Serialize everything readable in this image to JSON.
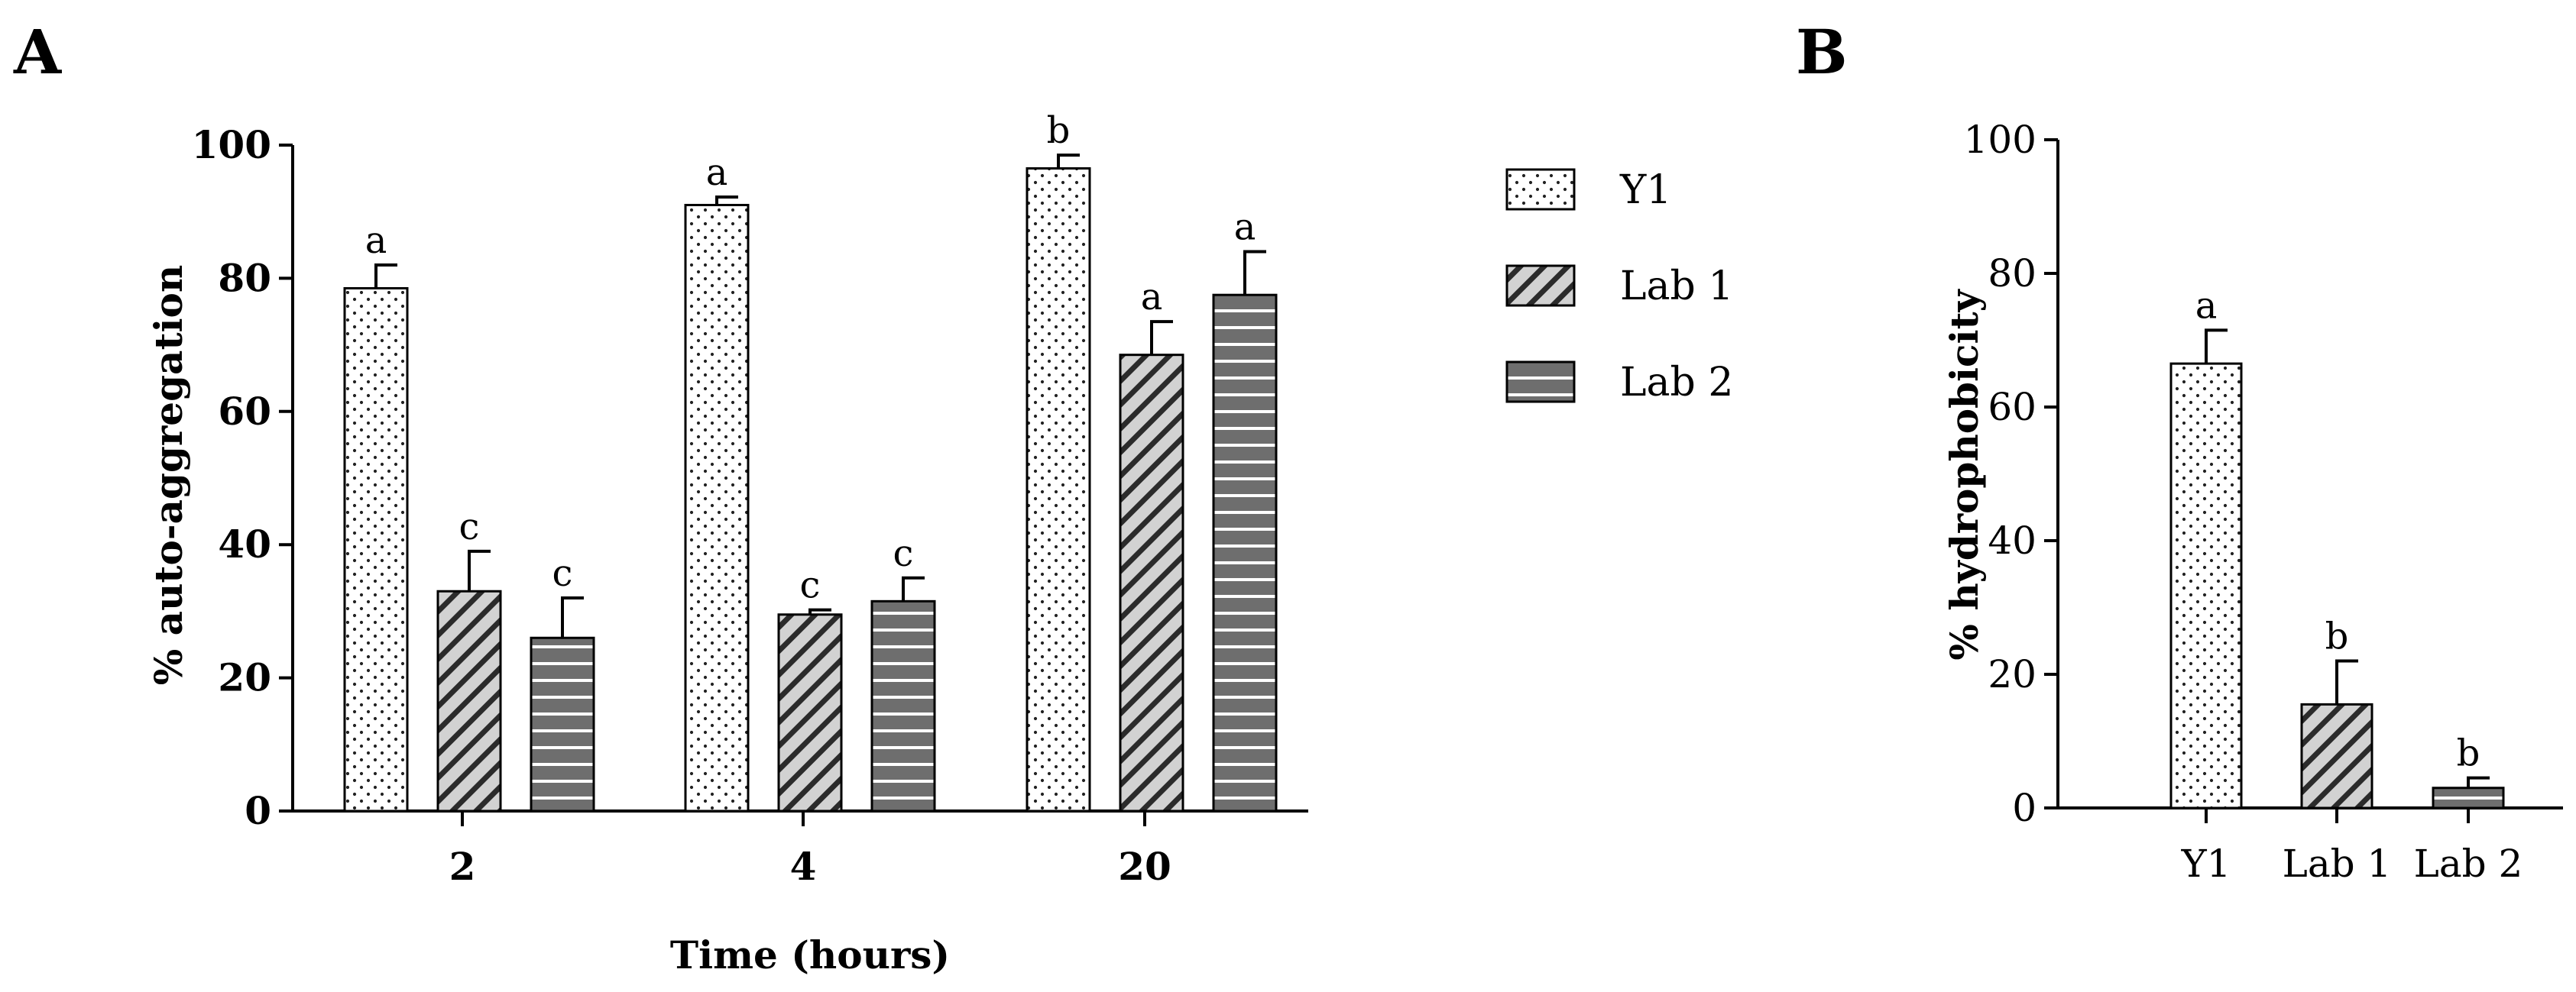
{
  "colors": {
    "y1_fill": "#ffffff",
    "lab1_fill": "#cfcfcf",
    "lab2_fill": "#6e6e6e",
    "axis": "#000000"
  },
  "legend": {
    "entries": [
      "Y1",
      "Lab 1",
      "Lab 2"
    ],
    "placement": "right-of-panel-A"
  },
  "chart_data": [
    {
      "panel": "A",
      "type": "bar",
      "title": "",
      "xlabel": "Time (hours)",
      "ylabel": "% auto-aggregation",
      "ylim": [
        0,
        100
      ],
      "yticks": [
        0,
        20,
        40,
        60,
        80,
        100
      ],
      "categories": [
        "2",
        "4",
        "20"
      ],
      "series": [
        {
          "name": "Y1",
          "pattern": "dots",
          "values": [
            78.5,
            91,
            96.5
          ],
          "errors": [
            3.5,
            1.2,
            2.0
          ],
          "labels": [
            "a",
            "a",
            "b"
          ]
        },
        {
          "name": "Lab 1",
          "pattern": "diagonal",
          "values": [
            33,
            29.5,
            68.5
          ],
          "errors": [
            6,
            0.7,
            5.0
          ],
          "labels": [
            "c",
            "c",
            "a"
          ]
        },
        {
          "name": "Lab 2",
          "pattern": "horizontal",
          "values": [
            26,
            31.5,
            77.5
          ],
          "errors": [
            6,
            3.5,
            6.5
          ],
          "labels": [
            "c",
            "c",
            "a"
          ]
        }
      ],
      "grid": false
    },
    {
      "panel": "B",
      "type": "bar",
      "title": "",
      "xlabel": "",
      "ylabel": "% hydrophobicity",
      "ylim": [
        0,
        100
      ],
      "yticks": [
        0,
        20,
        40,
        60,
        80,
        100
      ],
      "categories": [
        "Y1",
        "Lab 1",
        "Lab 2"
      ],
      "patterns": [
        "dots",
        "diagonal",
        "horizontal"
      ],
      "values": [
        66.5,
        15.5,
        3
      ],
      "errors": [
        5,
        6.5,
        1.5
      ],
      "labels": [
        "a",
        "b",
        "b"
      ],
      "grid": false
    }
  ]
}
